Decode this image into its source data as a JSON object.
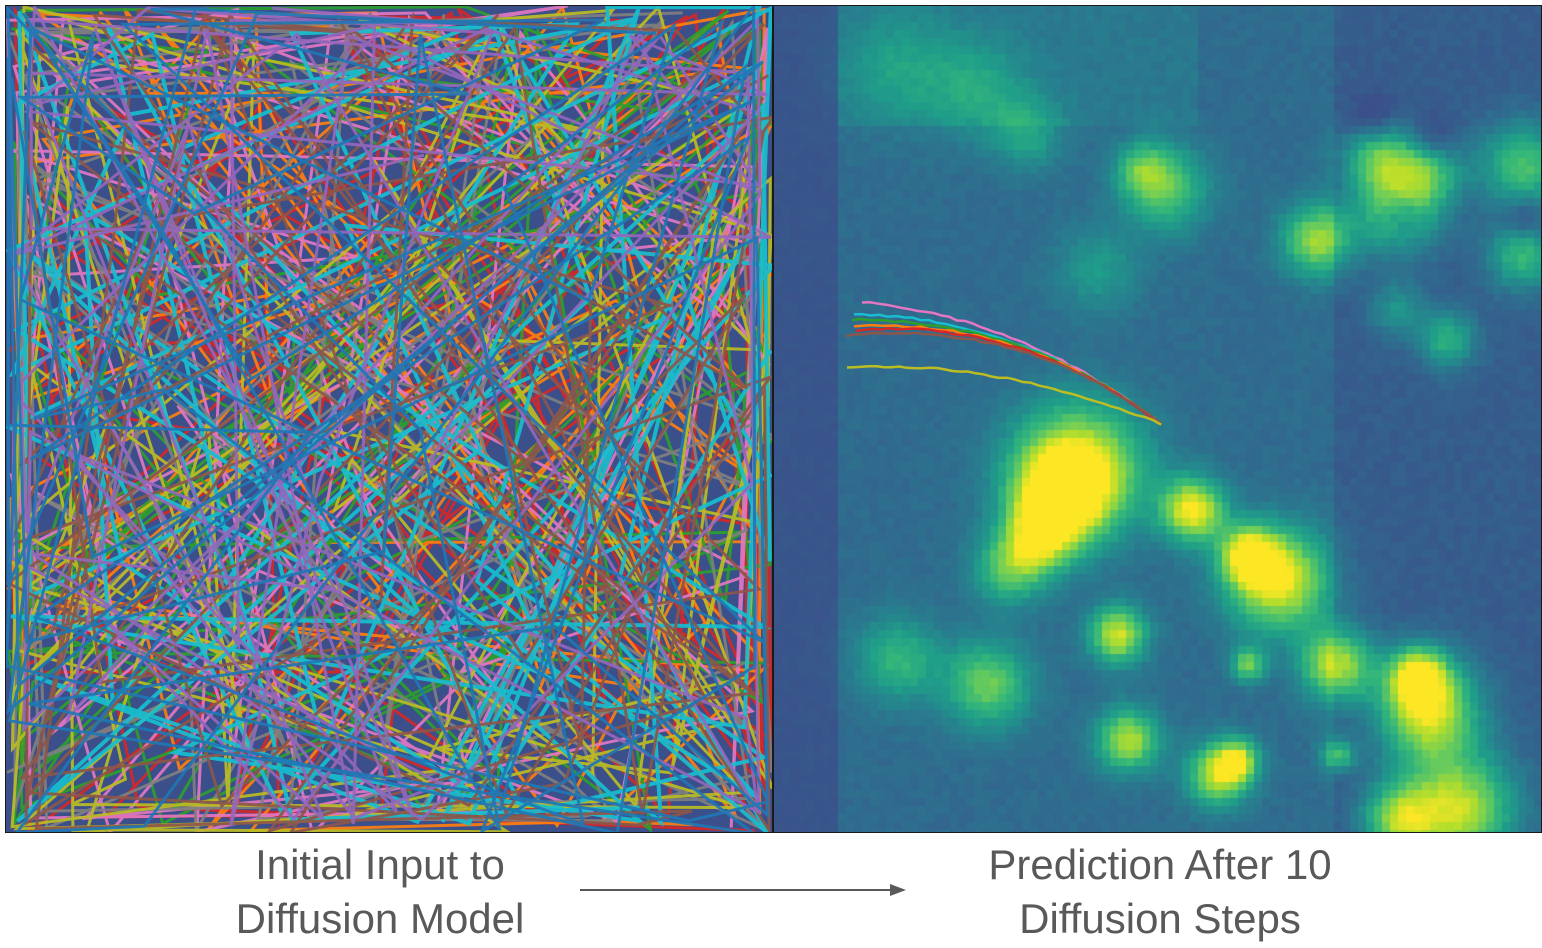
{
  "left_panel": {
    "caption_line1": "Initial Input to",
    "caption_line2": "Diffusion Model",
    "trajectory_colors": [
      "#d62728",
      "#ff7f0e",
      "#2ca02c",
      "#e377c2",
      "#7f7f7f",
      "#bcbd22",
      "#17becf",
      "#8c564b",
      "#9467bd",
      "#1f77b4"
    ],
    "background_color": "#3b4f8a"
  },
  "right_panel": {
    "caption_line1": "Prediction After 10",
    "caption_line2": "Diffusion Steps",
    "background_color": "#3b4f8a",
    "heatmap_colormap": "viridis",
    "trajectory_colors": [
      "#e377c2",
      "#17becf",
      "#2ca02c",
      "#ff7f0e",
      "#d62728",
      "#8c564b",
      "#bcbd22"
    ]
  },
  "arrow_icon": "right-arrow-icon"
}
